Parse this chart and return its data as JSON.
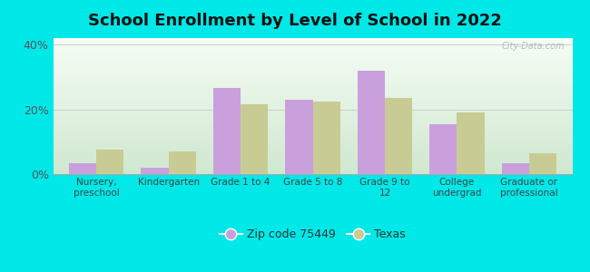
{
  "title": "School Enrollment by Level of School in 2022",
  "categories": [
    "Nursery,\npreschool",
    "Kindergarten",
    "Grade 1 to 4",
    "Grade 5 to 8",
    "Grade 9 to\n12",
    "College\nundergrad",
    "Graduate or\nprofessional"
  ],
  "zip_values": [
    3.5,
    2.0,
    26.5,
    23.0,
    32.0,
    15.5,
    3.5
  ],
  "texas_values": [
    7.5,
    7.0,
    21.5,
    22.5,
    23.5,
    19.0,
    6.5
  ],
  "zip_color": "#c9a0dc",
  "texas_color": "#c8cc94",
  "background_outer": "#00e8e8",
  "background_grad_top": "#f5fdf5",
  "background_grad_bottom": "#d0e8d0",
  "ylim": [
    0,
    42
  ],
  "yticks": [
    0,
    20,
    40
  ],
  "ytick_labels": [
    "0%",
    "20%",
    "40%"
  ],
  "legend_zip_label": "Zip code 75449",
  "legend_texas_label": "Texas",
  "bar_width": 0.38,
  "title_fontsize": 13,
  "watermark_text": "City-Data.com"
}
